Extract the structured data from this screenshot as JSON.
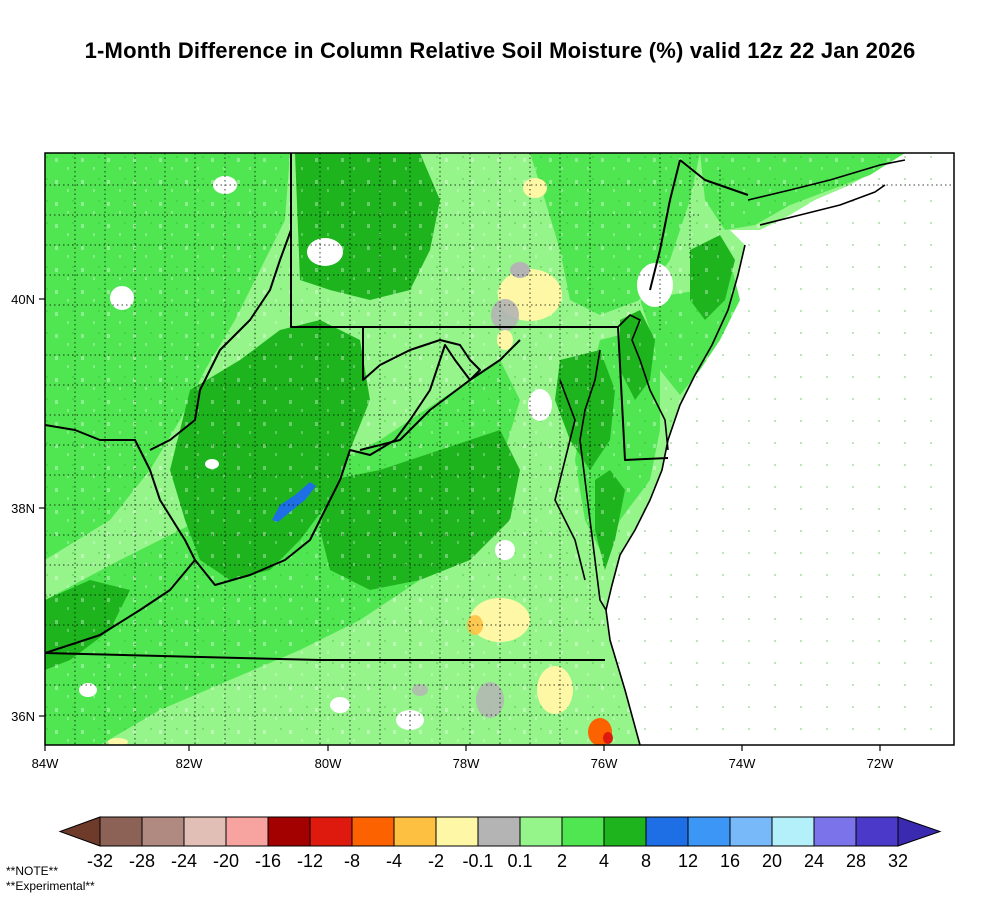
{
  "title": "1-Month Difference in Column Relative Soil Moisture (%) valid 12z 22 Jan 2026",
  "map": {
    "x_ticks": [
      "84W",
      "82W",
      "80W",
      "78W",
      "76W",
      "74W",
      "72W"
    ],
    "y_ticks": [
      "40N",
      "38N",
      "36N"
    ]
  },
  "colorbar": {
    "colors": [
      "#6e3b2b",
      "#8c6156",
      "#b08a80",
      "#e2bfb6",
      "#f7a39f",
      "#a30000",
      "#dd1a0d",
      "#fc6200",
      "#fec041",
      "#fef8a6",
      "#b4b4b4",
      "#95f58b",
      "#50e651",
      "#1eb41e",
      "#1e6ee6",
      "#3c96f5",
      "#78b9fa",
      "#b4f0fa",
      "#7a73ea",
      "#4b3ac9",
      "#3a2ab0"
    ],
    "labels": [
      "-32",
      "-28",
      "-24",
      "-20",
      "-16",
      "-12",
      "-8",
      "-4",
      "-2",
      "-0.1",
      "0.1",
      "2",
      "4",
      "8",
      "12",
      "16",
      "20",
      "24",
      "28",
      "32"
    ]
  },
  "notes": {
    "note1": "**NOTE**",
    "note2": "**Experimental**"
  }
}
